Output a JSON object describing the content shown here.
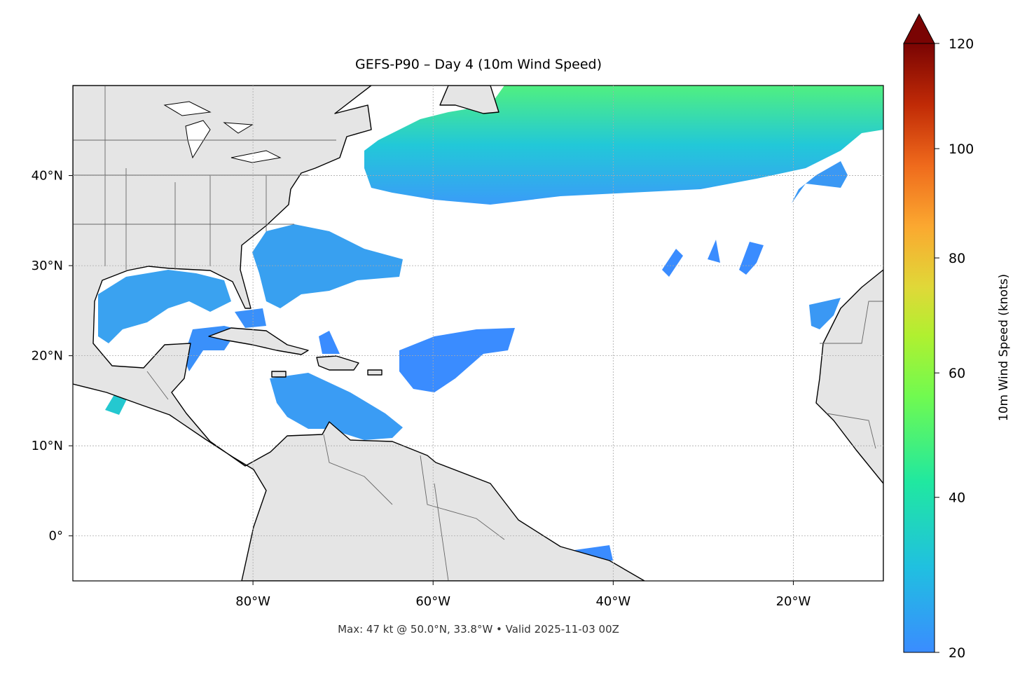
{
  "title": "GEFS-P90 – Day 4 (10m Wind Speed)",
  "footer": "Max: 47 kt @ 50.0°N, 33.8°W • Valid 2025-11-03 00Z",
  "map": {
    "lonlim": [
      -100,
      -10
    ],
    "latlim": [
      -5,
      50
    ],
    "lon_ticks": [
      {
        "value": -80,
        "label": "80°W"
      },
      {
        "value": -60,
        "label": "60°W"
      },
      {
        "value": -40,
        "label": "40°W"
      },
      {
        "value": -20,
        "label": "20°W"
      }
    ],
    "lat_ticks": [
      {
        "value": 0,
        "label": "0°"
      },
      {
        "value": 10,
        "label": "10°N"
      },
      {
        "value": 20,
        "label": "20°N"
      },
      {
        "value": 30,
        "label": "30°N"
      },
      {
        "value": 40,
        "label": "40°N"
      }
    ]
  },
  "colorbar": {
    "label": "10m Wind Speed (knots)",
    "range": [
      20,
      120
    ],
    "ticks": [
      20,
      40,
      60,
      80,
      100,
      120
    ]
  }
}
